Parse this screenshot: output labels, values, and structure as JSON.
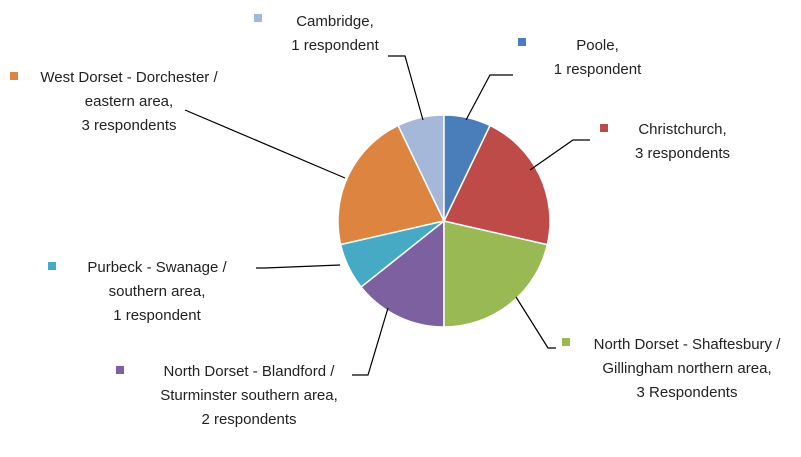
{
  "chart_data": {
    "type": "pie",
    "categories": [
      "Poole,",
      "Christchurch,",
      "North Dorset - Shaftesbury / Gillingham northern area,",
      "North Dorset - Blandford / Sturminster southern area,",
      "Purbeck - Swanage / southern area,",
      "West Dorset - Dorchester / eastern area,",
      "Cambridge,"
    ],
    "values": [
      1,
      3,
      3,
      2,
      1,
      3,
      1
    ],
    "value_labels": [
      "1 respondent",
      "3 respondents",
      "3 Respondents",
      "2 respondents",
      "1 respondent",
      "3 respondents",
      "1 respondent"
    ],
    "colors": [
      "#4a7ebb",
      "#be4b48",
      "#98b954",
      "#7d60a0",
      "#46aac5",
      "#dd8540",
      "#a5b8d9"
    ]
  }
}
